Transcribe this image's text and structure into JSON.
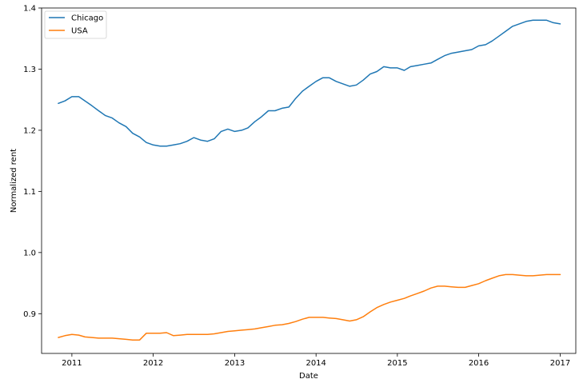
{
  "chart_data": {
    "type": "line",
    "title": "",
    "xlabel": "Date",
    "ylabel": "Normalized rent",
    "xlim": [
      "2010-08-18",
      "2017-03-12"
    ],
    "ylim": [
      0.835,
      1.4
    ],
    "x_ticks": [
      "2011-01-01",
      "2012-01-01",
      "2013-01-01",
      "2014-01-01",
      "2015-01-01",
      "2016-01-01",
      "2017-01-01"
    ],
    "x_tick_labels": [
      "2011",
      "2012",
      "2013",
      "2014",
      "2015",
      "2016",
      "2017"
    ],
    "y_ticks": [
      0.9,
      1.0,
      1.1,
      1.2,
      1.3,
      1.4
    ],
    "y_tick_labels": [
      "0.9",
      "1.0",
      "1.1",
      "1.2",
      "1.3",
      "1.4"
    ],
    "grid": false,
    "legend": "top-left",
    "x": [
      "2010-11",
      "2010-12",
      "2011-01",
      "2011-02",
      "2011-03",
      "2011-04",
      "2011-05",
      "2011-06",
      "2011-07",
      "2011-08",
      "2011-09",
      "2011-10",
      "2011-11",
      "2011-12",
      "2012-01",
      "2012-02",
      "2012-03",
      "2012-04",
      "2012-05",
      "2012-06",
      "2012-07",
      "2012-08",
      "2012-09",
      "2012-10",
      "2012-11",
      "2012-12",
      "2013-01",
      "2013-02",
      "2013-03",
      "2013-04",
      "2013-05",
      "2013-06",
      "2013-07",
      "2013-08",
      "2013-09",
      "2013-10",
      "2013-11",
      "2013-12",
      "2014-01",
      "2014-02",
      "2014-03",
      "2014-04",
      "2014-05",
      "2014-06",
      "2014-07",
      "2014-08",
      "2014-09",
      "2014-10",
      "2014-11",
      "2014-12",
      "2015-01",
      "2015-02",
      "2015-03",
      "2015-04",
      "2015-05",
      "2015-06",
      "2015-07",
      "2015-08",
      "2015-09",
      "2015-10",
      "2015-11",
      "2015-12",
      "2016-01",
      "2016-02",
      "2016-03",
      "2016-04",
      "2016-05",
      "2016-06",
      "2016-07",
      "2016-08",
      "2016-09",
      "2016-10",
      "2016-11",
      "2016-12",
      "2017-01"
    ],
    "series": [
      {
        "name": "Chicago",
        "color": "#1f77b4",
        "values": [
          1.244,
          1.248,
          1.255,
          1.255,
          1.248,
          1.24,
          1.232,
          1.224,
          1.22,
          1.212,
          1.206,
          1.195,
          1.189,
          1.18,
          1.176,
          1.174,
          1.174,
          1.176,
          1.178,
          1.182,
          1.188,
          1.184,
          1.182,
          1.186,
          1.198,
          1.202,
          1.198,
          1.2,
          1.204,
          1.214,
          1.222,
          1.232,
          1.232,
          1.236,
          1.238,
          1.252,
          1.264,
          1.272,
          1.28,
          1.286,
          1.286,
          1.28,
          1.276,
          1.272,
          1.274,
          1.282,
          1.292,
          1.296,
          1.304,
          1.302,
          1.302,
          1.298,
          1.304,
          1.306,
          1.308,
          1.31,
          1.316,
          1.322,
          1.326,
          1.328,
          1.33,
          1.332,
          1.338,
          1.34,
          1.346,
          1.354,
          1.362,
          1.37,
          1.374,
          1.378,
          1.38,
          1.38,
          1.38,
          1.376,
          1.374
        ]
      },
      {
        "name": "USA",
        "color": "#ff7f0e",
        "values": [
          0.861,
          0.864,
          0.866,
          0.865,
          0.862,
          0.861,
          0.86,
          0.86,
          0.86,
          0.859,
          0.858,
          0.857,
          0.857,
          0.868,
          0.868,
          0.868,
          0.869,
          0.864,
          0.865,
          0.866,
          0.866,
          0.866,
          0.866,
          0.867,
          0.869,
          0.871,
          0.872,
          0.873,
          0.874,
          0.875,
          0.877,
          0.879,
          0.881,
          0.882,
          0.884,
          0.887,
          0.891,
          0.894,
          0.894,
          0.894,
          0.893,
          0.892,
          0.89,
          0.888,
          0.89,
          0.895,
          0.903,
          0.91,
          0.915,
          0.919,
          0.922,
          0.925,
          0.929,
          0.933,
          0.937,
          0.942,
          0.945,
          0.945,
          0.944,
          0.943,
          0.943,
          0.946,
          0.949,
          0.954,
          0.958,
          0.962,
          0.964,
          0.964,
          0.963,
          0.962,
          0.962,
          0.963,
          0.964,
          0.964,
          0.964
        ]
      }
    ]
  }
}
